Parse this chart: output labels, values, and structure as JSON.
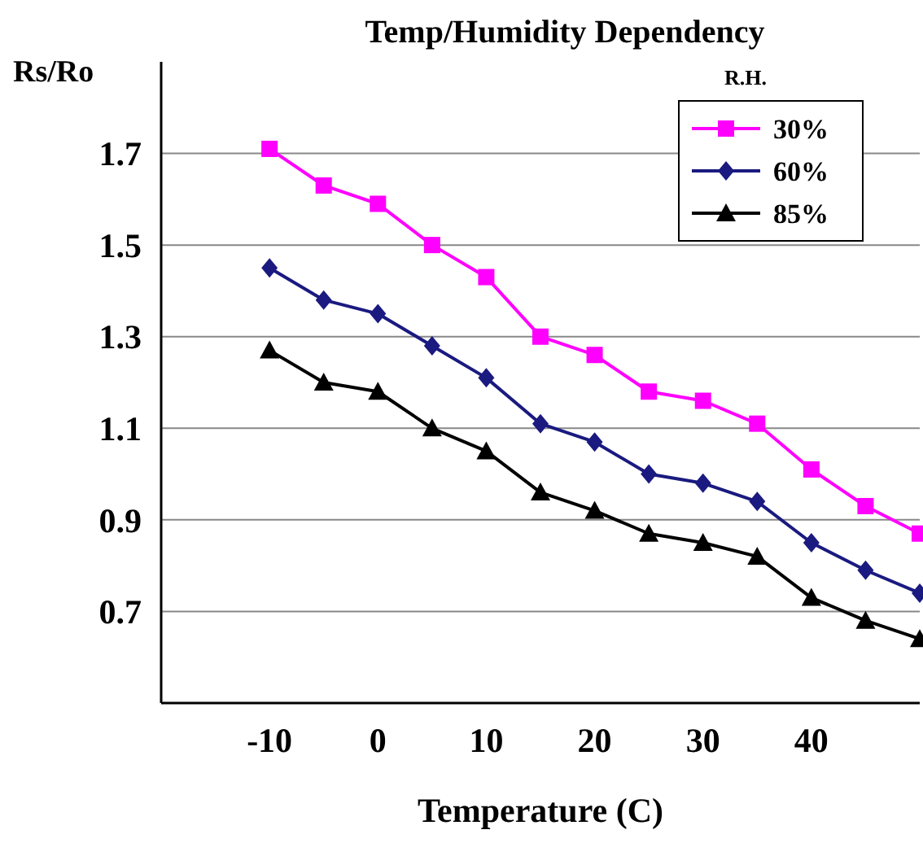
{
  "chart_data": {
    "type": "line",
    "title": "Temp/Humidity Dependency",
    "xlabel": "Temperature (C)",
    "ylabel": "Rs/Ro",
    "legend_title": "R.H.",
    "x": [
      -10,
      -5,
      0,
      5,
      10,
      15,
      20,
      25,
      30,
      35,
      40,
      45,
      50
    ],
    "xlim": [
      -20,
      50
    ],
    "xticks": [
      -10,
      0,
      10,
      20,
      30,
      40
    ],
    "ylim": [
      0.5,
      1.9
    ],
    "yticks": [
      0.7,
      0.9,
      1.1,
      1.3,
      1.5,
      1.7
    ],
    "grid": "y",
    "legend": "top right",
    "series": [
      {
        "name": "30%",
        "color": "#ff00ff",
        "marker": "square",
        "values": [
          1.71,
          1.63,
          1.59,
          1.5,
          1.43,
          1.3,
          1.26,
          1.18,
          1.16,
          1.11,
          1.01,
          0.93,
          0.87
        ]
      },
      {
        "name": "60%",
        "color": "#1a1a80",
        "marker": "diamond",
        "values": [
          1.45,
          1.38,
          1.35,
          1.28,
          1.21,
          1.11,
          1.07,
          1.0,
          0.98,
          0.94,
          0.85,
          0.79,
          0.74
        ]
      },
      {
        "name": "85%",
        "color": "#000000",
        "marker": "triangle",
        "values": [
          1.27,
          1.2,
          1.18,
          1.1,
          1.05,
          0.96,
          0.92,
          0.87,
          0.85,
          0.82,
          0.73,
          0.68,
          0.64
        ]
      }
    ]
  }
}
